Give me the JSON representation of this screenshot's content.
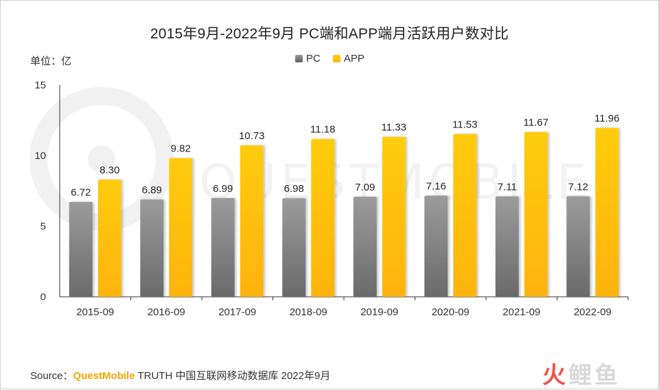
{
  "title": "2015年9月-2022年9月 PC端和APP端月活跃用户数对比",
  "unit_label": "单位：亿",
  "footer": {
    "source_prefix": "Source：",
    "brand": "QuestMobile",
    "source_suffix": "TRUTH 中国互联网移动数据库 2022年9月"
  },
  "watermark": {
    "chart_text": "QUESTMOBILE",
    "logo_char1": "火",
    "logo_chars": "鲤鱼"
  },
  "colors": {
    "pc": "#7f7f7f",
    "app": "#ffc000",
    "axis": "#555555"
  },
  "chart_data": {
    "type": "bar",
    "title": "2015年9月-2022年9月 PC端和APP端月活跃用户数对比",
    "ylabel": "单位：亿",
    "ylim": [
      0,
      15
    ],
    "yticks": [
      0,
      5,
      10,
      15
    ],
    "grid": false,
    "legend": "top",
    "categories": [
      "2015-09",
      "2016-09",
      "2017-09",
      "2018-09",
      "2019-09",
      "2020-09",
      "2021-09",
      "2022-09"
    ],
    "series": [
      {
        "name": "PC",
        "values": [
          6.72,
          6.89,
          6.99,
          6.98,
          7.09,
          7.16,
          7.11,
          7.12
        ],
        "labels": [
          "6.72",
          "6.89",
          "6.99",
          "6.98",
          "7.09",
          "7.16",
          "7.11",
          "7.12"
        ]
      },
      {
        "name": "APP",
        "values": [
          8.3,
          9.82,
          10.73,
          11.18,
          11.33,
          11.53,
          11.67,
          11.96
        ],
        "labels": [
          "8.30",
          "9.82",
          "10.73",
          "11.18",
          "11.33",
          "11.53",
          "11.67",
          "11.96"
        ]
      }
    ]
  }
}
